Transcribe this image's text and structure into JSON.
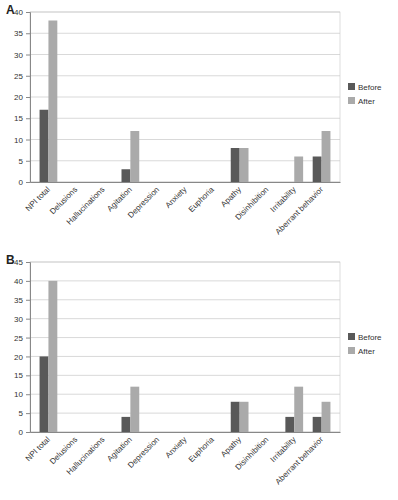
{
  "chart_data": [
    {
      "type": "bar",
      "title": "A",
      "categories": [
        "NPI total",
        "Delusions",
        "Hallucinations",
        "Agitation",
        "Depression",
        "Anxiety",
        "Euphoria",
        "Apathy",
        "Disinhibition",
        "Irritability",
        "Aberrant behavior"
      ],
      "series": [
        {
          "name": "Before",
          "color": "#595959",
          "values": [
            17,
            0,
            0,
            3,
            0,
            0,
            0,
            8,
            0,
            0,
            6
          ]
        },
        {
          "name": "After",
          "color": "#aaaaaa",
          "values": [
            38,
            0,
            0,
            12,
            0,
            0,
            0,
            8,
            0,
            6,
            12
          ]
        }
      ],
      "ylim": [
        0,
        40
      ],
      "yticks": [
        0,
        5,
        10,
        15,
        20,
        25,
        30,
        35,
        40
      ],
      "grid": true,
      "legend": "right"
    },
    {
      "type": "bar",
      "title": "B",
      "categories": [
        "NPI total",
        "Delusions",
        "Hallucinations",
        "Agitation",
        "Depression",
        "Anxiety",
        "Euphoria",
        "Apathy",
        "Disinhibition",
        "Irritability",
        "Aberrant behavior"
      ],
      "series": [
        {
          "name": "Before",
          "color": "#595959",
          "values": [
            20,
            0,
            0,
            4,
            0,
            0,
            0,
            8,
            0,
            4,
            4
          ]
        },
        {
          "name": "After",
          "color": "#aaaaaa",
          "values": [
            40,
            0,
            0,
            12,
            0,
            0,
            0,
            8,
            0,
            12,
            8
          ]
        }
      ],
      "ylim": [
        0,
        45
      ],
      "yticks": [
        0,
        5,
        10,
        15,
        20,
        25,
        30,
        35,
        40,
        45
      ],
      "grid": true,
      "legend": "right"
    }
  ]
}
